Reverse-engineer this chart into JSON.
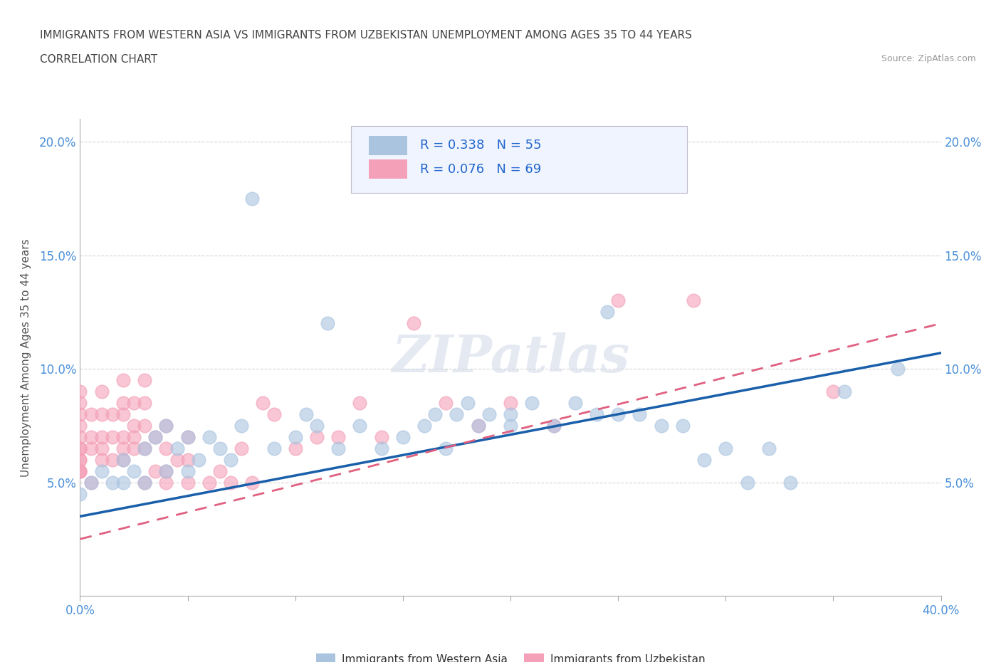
{
  "title_line1": "IMMIGRANTS FROM WESTERN ASIA VS IMMIGRANTS FROM UZBEKISTAN UNEMPLOYMENT AMONG AGES 35 TO 44 YEARS",
  "title_line2": "CORRELATION CHART",
  "source": "Source: ZipAtlas.com",
  "ylabel": "Unemployment Among Ages 35 to 44 years",
  "xlim": [
    0.0,
    0.4
  ],
  "ylim": [
    0.0,
    0.21
  ],
  "western_asia_color": "#aac4e0",
  "uzbekistan_color": "#f4a0b8",
  "western_asia_line_color": "#1a5faa",
  "uzbekistan_line_color": "#e06080",
  "R_western": 0.338,
  "N_western": 55,
  "R_uzbekistan": 0.076,
  "N_uzbekistan": 69,
  "wa_trend_start_y": 0.035,
  "wa_trend_end_y": 0.107,
  "uz_trend_start_y": 0.025,
  "uz_trend_end_y": 0.12,
  "western_asia_x": [
    0.0,
    0.005,
    0.01,
    0.015,
    0.02,
    0.02,
    0.025,
    0.03,
    0.03,
    0.035,
    0.04,
    0.04,
    0.045,
    0.05,
    0.05,
    0.055,
    0.06,
    0.065,
    0.07,
    0.075,
    0.08,
    0.09,
    0.1,
    0.105,
    0.11,
    0.115,
    0.12,
    0.13,
    0.14,
    0.15,
    0.16,
    0.165,
    0.17,
    0.175,
    0.18,
    0.185,
    0.19,
    0.2,
    0.2,
    0.21,
    0.22,
    0.23,
    0.24,
    0.245,
    0.25,
    0.26,
    0.27,
    0.28,
    0.29,
    0.3,
    0.31,
    0.32,
    0.33,
    0.355,
    0.38
  ],
  "western_asia_y": [
    0.045,
    0.05,
    0.055,
    0.05,
    0.05,
    0.06,
    0.055,
    0.05,
    0.065,
    0.07,
    0.055,
    0.075,
    0.065,
    0.055,
    0.07,
    0.06,
    0.07,
    0.065,
    0.06,
    0.075,
    0.175,
    0.065,
    0.07,
    0.08,
    0.075,
    0.12,
    0.065,
    0.075,
    0.065,
    0.07,
    0.075,
    0.08,
    0.065,
    0.08,
    0.085,
    0.075,
    0.08,
    0.08,
    0.075,
    0.085,
    0.075,
    0.085,
    0.08,
    0.125,
    0.08,
    0.08,
    0.075,
    0.075,
    0.06,
    0.065,
    0.05,
    0.065,
    0.05,
    0.09,
    0.1
  ],
  "uzbekistan_x": [
    0.0,
    0.0,
    0.0,
    0.0,
    0.0,
    0.0,
    0.0,
    0.0,
    0.0,
    0.0,
    0.0,
    0.0,
    0.005,
    0.005,
    0.005,
    0.005,
    0.01,
    0.01,
    0.01,
    0.01,
    0.01,
    0.015,
    0.015,
    0.015,
    0.02,
    0.02,
    0.02,
    0.02,
    0.02,
    0.02,
    0.025,
    0.025,
    0.025,
    0.025,
    0.03,
    0.03,
    0.03,
    0.03,
    0.03,
    0.035,
    0.035,
    0.04,
    0.04,
    0.04,
    0.04,
    0.045,
    0.05,
    0.05,
    0.05,
    0.06,
    0.065,
    0.07,
    0.075,
    0.08,
    0.085,
    0.09,
    0.1,
    0.11,
    0.12,
    0.13,
    0.14,
    0.155,
    0.17,
    0.185,
    0.2,
    0.22,
    0.25,
    0.285,
    0.35
  ],
  "uzbekistan_y": [
    0.055,
    0.055,
    0.055,
    0.06,
    0.06,
    0.065,
    0.065,
    0.07,
    0.075,
    0.08,
    0.085,
    0.09,
    0.05,
    0.065,
    0.07,
    0.08,
    0.06,
    0.065,
    0.07,
    0.08,
    0.09,
    0.06,
    0.07,
    0.08,
    0.06,
    0.065,
    0.07,
    0.08,
    0.085,
    0.095,
    0.065,
    0.07,
    0.075,
    0.085,
    0.05,
    0.065,
    0.075,
    0.085,
    0.095,
    0.055,
    0.07,
    0.05,
    0.055,
    0.065,
    0.075,
    0.06,
    0.05,
    0.06,
    0.07,
    0.05,
    0.055,
    0.05,
    0.065,
    0.05,
    0.085,
    0.08,
    0.065,
    0.07,
    0.07,
    0.085,
    0.07,
    0.12,
    0.085,
    0.075,
    0.085,
    0.075,
    0.13,
    0.13,
    0.09
  ],
  "watermark": "ZIPatlas",
  "background_color": "#ffffff",
  "grid_color": "#cccccc",
  "tick_color": "#4a90d9",
  "label_color": "#555555"
}
